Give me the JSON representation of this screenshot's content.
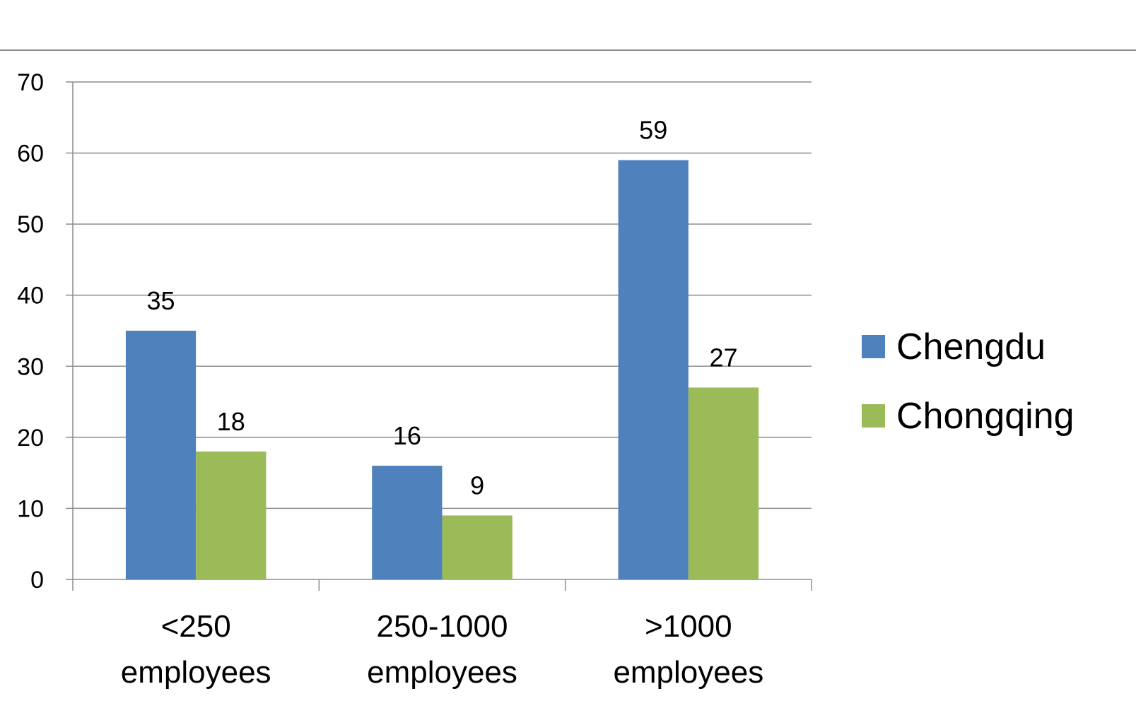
{
  "chart_data": {
    "type": "bar",
    "title": "",
    "xlabel": "",
    "ylabel": "",
    "categories": [
      [
        "<250",
        "employees"
      ],
      [
        "250-1000",
        "employees"
      ],
      [
        ">1000",
        "employees"
      ]
    ],
    "series": [
      {
        "name": "Chengdu",
        "color": "#4F81BD",
        "values": [
          35,
          16,
          59
        ]
      },
      {
        "name": "Chongqing",
        "color": "#9BBB59",
        "values": [
          18,
          9,
          27
        ]
      }
    ],
    "ylim": [
      0,
      70
    ],
    "yticks": [
      "0",
      "10",
      "20",
      "30",
      "40",
      "50",
      "60",
      "70"
    ],
    "data_labels": true,
    "grid": true,
    "legend_position": "right"
  }
}
